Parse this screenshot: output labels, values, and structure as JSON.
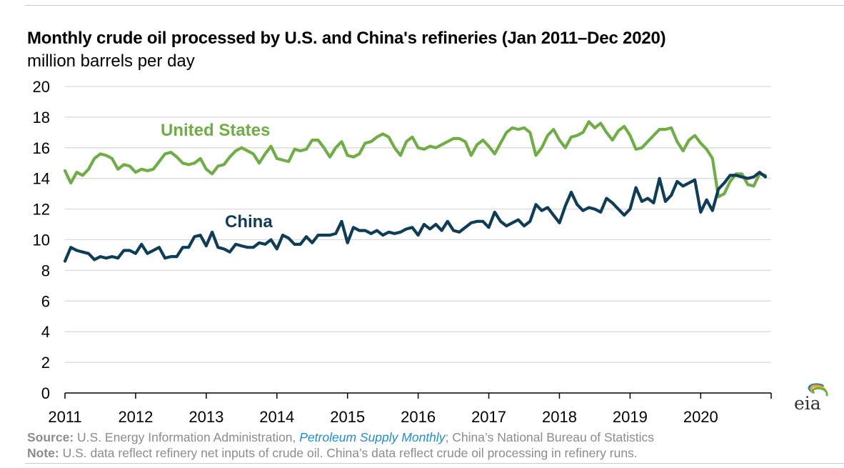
{
  "header": {
    "title": "Monthly crude oil processed by U.S. and China's refineries (Jan 2011–Dec 2020)",
    "subtitle": "million barrels per day"
  },
  "footer": {
    "source_label": "Source:",
    "source_pre": " U.S. Energy Information Administration, ",
    "source_publication": "Petroleum Supply Monthly",
    "source_post": "; China’s National Bureau of Statistics",
    "note_label": "Note:",
    "note_text": " U.S. data reflect refinery net inputs of crude oil. China’s data reflect crude oil processing in refinery runs."
  },
  "logo": {
    "text": "eia",
    "icon": "eia-logo-icon"
  },
  "colors": {
    "united_states": "#70ad47",
    "china": "#0f3c56",
    "grid": "#d9d9d9",
    "axis": "#000000"
  },
  "chart_data": {
    "type": "line",
    "title": "Monthly crude oil processed by U.S. and China's refineries (Jan 2011–Dec 2020)",
    "ylabel": "million barrels per day",
    "xlabel": "",
    "ylim": [
      0,
      20
    ],
    "yticks": [
      0,
      2,
      4,
      6,
      8,
      10,
      12,
      14,
      16,
      18,
      20
    ],
    "xlim": [
      "2011-01",
      "2020-12"
    ],
    "xticks": [
      "2011",
      "2012",
      "2013",
      "2014",
      "2015",
      "2016",
      "2017",
      "2018",
      "2019",
      "2020"
    ],
    "grid": true,
    "legend": "inline labels",
    "x": [
      "2011-01",
      "2011-02",
      "2011-03",
      "2011-04",
      "2011-05",
      "2011-06",
      "2011-07",
      "2011-08",
      "2011-09",
      "2011-10",
      "2011-11",
      "2011-12",
      "2012-01",
      "2012-02",
      "2012-03",
      "2012-04",
      "2012-05",
      "2012-06",
      "2012-07",
      "2012-08",
      "2012-09",
      "2012-10",
      "2012-11",
      "2012-12",
      "2013-01",
      "2013-02",
      "2013-03",
      "2013-04",
      "2013-05",
      "2013-06",
      "2013-07",
      "2013-08",
      "2013-09",
      "2013-10",
      "2013-11",
      "2013-12",
      "2014-01",
      "2014-02",
      "2014-03",
      "2014-04",
      "2014-05",
      "2014-06",
      "2014-07",
      "2014-08",
      "2014-09",
      "2014-10",
      "2014-11",
      "2014-12",
      "2015-01",
      "2015-02",
      "2015-03",
      "2015-04",
      "2015-05",
      "2015-06",
      "2015-07",
      "2015-08",
      "2015-09",
      "2015-10",
      "2015-11",
      "2015-12",
      "2016-01",
      "2016-02",
      "2016-03",
      "2016-04",
      "2016-05",
      "2016-06",
      "2016-07",
      "2016-08",
      "2016-09",
      "2016-10",
      "2016-11",
      "2016-12",
      "2017-01",
      "2017-02",
      "2017-03",
      "2017-04",
      "2017-05",
      "2017-06",
      "2017-07",
      "2017-08",
      "2017-09",
      "2017-10",
      "2017-11",
      "2017-12",
      "2018-01",
      "2018-02",
      "2018-03",
      "2018-04",
      "2018-05",
      "2018-06",
      "2018-07",
      "2018-08",
      "2018-09",
      "2018-10",
      "2018-11",
      "2018-12",
      "2019-01",
      "2019-02",
      "2019-03",
      "2019-04",
      "2019-05",
      "2019-06",
      "2019-07",
      "2019-08",
      "2019-09",
      "2019-10",
      "2019-11",
      "2019-12",
      "2020-01",
      "2020-02",
      "2020-03",
      "2020-04",
      "2020-05",
      "2020-06",
      "2020-07",
      "2020-08",
      "2020-09",
      "2020-10",
      "2020-11",
      "2020-12"
    ],
    "series": [
      {
        "name": "United States",
        "color": "#70ad47",
        "values": [
          14.5,
          13.7,
          14.4,
          14.2,
          14.6,
          15.3,
          15.6,
          15.5,
          15.3,
          14.6,
          14.9,
          14.8,
          14.4,
          14.6,
          14.5,
          14.6,
          15.1,
          15.6,
          15.7,
          15.4,
          15.0,
          14.9,
          15.0,
          15.3,
          14.6,
          14.3,
          14.8,
          14.9,
          15.4,
          15.8,
          16.0,
          15.8,
          15.6,
          15.0,
          15.6,
          16.1,
          15.3,
          15.2,
          15.1,
          15.9,
          15.8,
          15.9,
          16.5,
          16.5,
          16.0,
          15.4,
          16.0,
          16.4,
          15.5,
          15.4,
          15.6,
          16.3,
          16.4,
          16.7,
          16.9,
          16.7,
          16.0,
          15.5,
          16.4,
          16.7,
          16.0,
          15.9,
          16.1,
          16.0,
          16.2,
          16.4,
          16.6,
          16.6,
          16.4,
          15.5,
          16.2,
          16.5,
          16.1,
          15.6,
          16.3,
          17.0,
          17.3,
          17.2,
          17.3,
          17.0,
          15.5,
          16.0,
          16.8,
          17.2,
          16.5,
          16.0,
          16.7,
          16.8,
          17.0,
          17.7,
          17.3,
          17.6,
          17.0,
          16.5,
          17.1,
          17.4,
          16.8,
          15.9,
          16.0,
          16.4,
          16.8,
          17.2,
          17.2,
          17.3,
          16.4,
          15.8,
          16.5,
          16.8,
          16.3,
          15.9,
          15.3,
          12.8,
          13.0,
          13.8,
          14.3,
          14.3,
          13.6,
          13.5,
          14.3,
          14.2
        ]
      },
      {
        "name": "China",
        "color": "#0f3c56",
        "values": [
          8.6,
          9.5,
          9.3,
          9.2,
          9.1,
          8.7,
          8.9,
          8.8,
          8.9,
          8.8,
          9.3,
          9.3,
          9.1,
          9.7,
          9.1,
          9.3,
          9.5,
          8.8,
          8.9,
          8.9,
          9.5,
          9.5,
          10.2,
          10.3,
          9.6,
          10.5,
          9.5,
          9.4,
          9.2,
          9.7,
          9.6,
          9.5,
          9.5,
          9.8,
          9.7,
          10.0,
          9.4,
          10.3,
          10.1,
          9.7,
          9.7,
          10.2,
          9.8,
          10.3,
          10.3,
          10.3,
          10.4,
          11.2,
          9.8,
          10.8,
          10.6,
          10.6,
          10.4,
          10.6,
          10.3,
          10.5,
          10.4,
          10.5,
          10.7,
          10.8,
          10.3,
          11.0,
          10.7,
          11.0,
          10.6,
          11.2,
          10.6,
          10.5,
          10.8,
          11.1,
          11.2,
          11.2,
          10.8,
          11.8,
          11.2,
          10.9,
          11.1,
          11.3,
          10.9,
          11.2,
          12.3,
          11.9,
          12.1,
          11.6,
          11.1,
          12.2,
          13.1,
          12.3,
          11.9,
          12.1,
          12.0,
          11.8,
          12.7,
          12.4,
          12.0,
          11.6,
          12.0,
          13.4,
          12.5,
          12.7,
          12.4,
          14.0,
          12.5,
          12.9,
          13.8,
          13.5,
          13.7,
          13.9,
          11.8,
          12.6,
          11.9,
          13.3,
          13.7,
          14.2,
          14.2,
          14.1,
          14.0,
          14.1,
          14.4,
          14.1
        ]
      }
    ],
    "annotations": [
      {
        "text": "United States",
        "series": "United States"
      },
      {
        "text": "China",
        "series": "China"
      }
    ]
  }
}
